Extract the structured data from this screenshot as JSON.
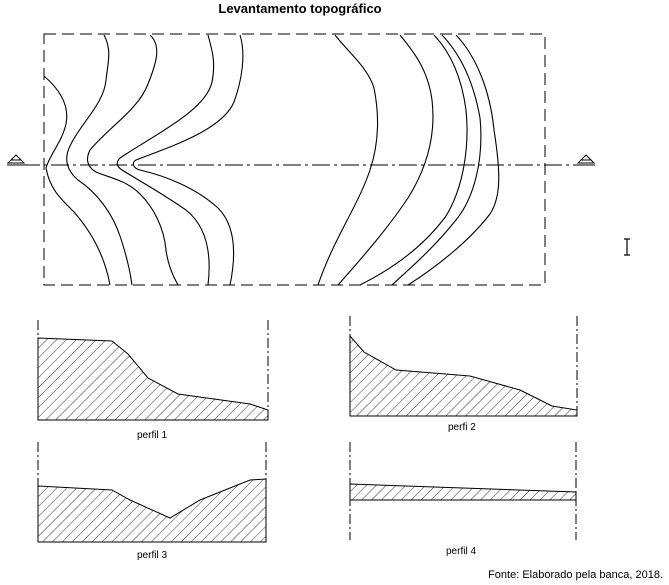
{
  "title": "Levantamento topográfico",
  "profiles": [
    {
      "label": "perfil 1"
    },
    {
      "label": "perfi 2"
    },
    {
      "label": "perfil 3"
    },
    {
      "label": "perfil 4"
    }
  ],
  "source": "Fonte: Elaborado pela banca, 2018.",
  "colors": {
    "line": "#000000",
    "background": "#ffffff"
  },
  "icons": [
    "section-marker-icon",
    "text-cursor-icon"
  ]
}
